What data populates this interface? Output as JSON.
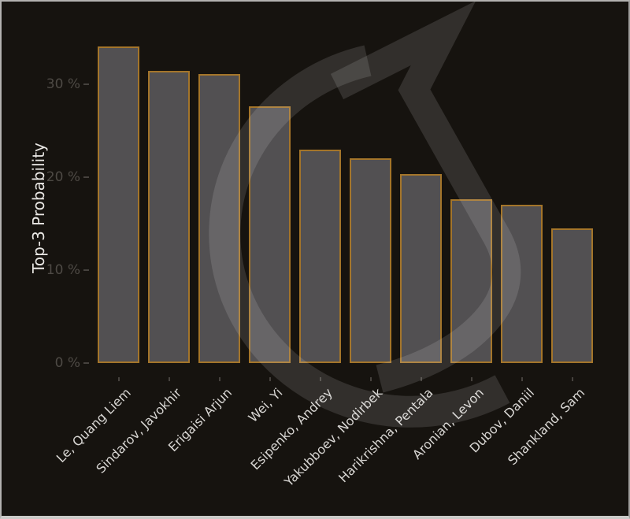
{
  "chart_data": {
    "type": "bar",
    "categories": [
      "Le, Quang Liem",
      "Sindarov, Javokhir",
      "Erigaisi Arjun",
      "Wei, Yi",
      "Esipenko, Andrey",
      "Yakubboev, Nodirbek",
      "Harikrishna, Pentala",
      "Aronian, Levon",
      "Dubov, Daniil",
      "Shankland, Sam"
    ],
    "values": [
      34.1,
      31.4,
      31.1,
      27.6,
      23.0,
      22.0,
      20.3,
      17.6,
      17.0,
      14.5
    ],
    "title": "",
    "xlabel": "",
    "ylabel": "Top-3 Probability",
    "ylim": [
      0,
      35
    ],
    "yticks": [
      0,
      10,
      20,
      30
    ],
    "ytick_labels": [
      "0 %",
      "10 %",
      "20 %",
      "30 %"
    ],
    "grid": false,
    "legend": "none",
    "bar_fill_color": "#525052",
    "bar_border_color": "#a4752a",
    "background_color": "#16130f",
    "ytick_label_color": "#4e4a45",
    "xtick_label_color": "#d9d7d4",
    "axis_title_color": "#e9e7e4",
    "watermark": "chess-knight-logo",
    "watermark_color": "rgba(255,255,255,0.12)"
  }
}
